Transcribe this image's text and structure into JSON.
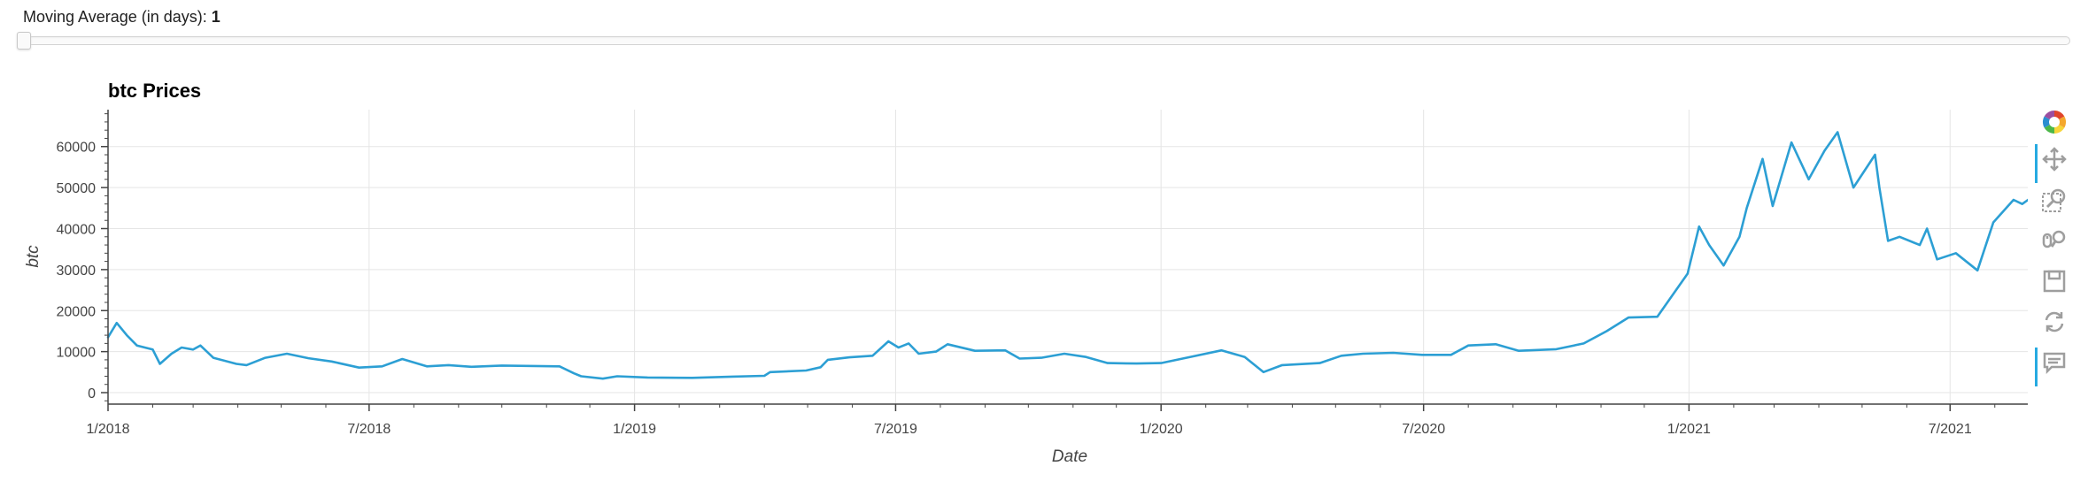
{
  "slider": {
    "label": "Moving Average (in days): ",
    "value": "1",
    "fraction": 0
  },
  "toolbar": {
    "tools": [
      "bokeh-logo-icon",
      "pan-icon",
      "box-zoom-icon",
      "wheel-zoom-icon",
      "save-icon",
      "reset-icon",
      "hover-icon"
    ]
  },
  "colors": {
    "line": "#2c9fd4",
    "grid": "#e5e5e5",
    "axis": "#444444",
    "accent": "#26aae1"
  },
  "chart_data": {
    "type": "line",
    "title": "btc Prices",
    "xlabel": "Date",
    "ylabel": "btc",
    "grid": true,
    "x_range": [
      "2018-01-01",
      "2021-08-30"
    ],
    "ylim": [
      -2800,
      69000
    ],
    "x_ticks": [
      {
        "date": "2018-01-01",
        "label": "1/2018"
      },
      {
        "date": "2018-07-01",
        "label": "7/2018"
      },
      {
        "date": "2019-01-01",
        "label": "1/2019"
      },
      {
        "date": "2019-07-01",
        "label": "7/2019"
      },
      {
        "date": "2020-01-01",
        "label": "1/2020"
      },
      {
        "date": "2020-07-01",
        "label": "7/2020"
      },
      {
        "date": "2021-01-01",
        "label": "1/2021"
      },
      {
        "date": "2021-07-01",
        "label": "7/2021"
      }
    ],
    "y_ticks": [
      0,
      10000,
      20000,
      30000,
      40000,
      50000,
      60000
    ],
    "series": [
      {
        "color": "#2c9fd4",
        "points": [
          [
            "2018-01-01",
            13500
          ],
          [
            "2018-01-07",
            17000
          ],
          [
            "2018-01-14",
            14000
          ],
          [
            "2018-01-21",
            11500
          ],
          [
            "2018-02-01",
            10500
          ],
          [
            "2018-02-06",
            7000
          ],
          [
            "2018-02-14",
            9500
          ],
          [
            "2018-02-21",
            11000
          ],
          [
            "2018-03-01",
            10500
          ],
          [
            "2018-03-06",
            11500
          ],
          [
            "2018-03-15",
            8500
          ],
          [
            "2018-03-31",
            7000
          ],
          [
            "2018-04-07",
            6700
          ],
          [
            "2018-04-20",
            8500
          ],
          [
            "2018-05-05",
            9500
          ],
          [
            "2018-05-20",
            8400
          ],
          [
            "2018-06-05",
            7600
          ],
          [
            "2018-06-24",
            6100
          ],
          [
            "2018-07-10",
            6400
          ],
          [
            "2018-07-24",
            8200
          ],
          [
            "2018-08-10",
            6400
          ],
          [
            "2018-08-25",
            6700
          ],
          [
            "2018-09-10",
            6300
          ],
          [
            "2018-10-01",
            6600
          ],
          [
            "2018-11-10",
            6400
          ],
          [
            "2018-11-20",
            4700
          ],
          [
            "2018-11-25",
            4000
          ],
          [
            "2018-12-10",
            3400
          ],
          [
            "2018-12-20",
            4000
          ],
          [
            "2019-01-10",
            3700
          ],
          [
            "2019-02-10",
            3600
          ],
          [
            "2019-03-10",
            3900
          ],
          [
            "2019-04-01",
            4100
          ],
          [
            "2019-04-05",
            5000
          ],
          [
            "2019-04-30",
            5400
          ],
          [
            "2019-05-10",
            6200
          ],
          [
            "2019-05-15",
            8000
          ],
          [
            "2019-05-30",
            8600
          ],
          [
            "2019-06-15",
            9000
          ],
          [
            "2019-06-26",
            12500
          ],
          [
            "2019-07-03",
            11000
          ],
          [
            "2019-07-10",
            12000
          ],
          [
            "2019-07-17",
            9500
          ],
          [
            "2019-07-29",
            10000
          ],
          [
            "2019-08-06",
            11800
          ],
          [
            "2019-08-25",
            10200
          ],
          [
            "2019-09-15",
            10300
          ],
          [
            "2019-09-25",
            8300
          ],
          [
            "2019-10-10",
            8500
          ],
          [
            "2019-10-26",
            9500
          ],
          [
            "2019-11-10",
            8700
          ],
          [
            "2019-11-25",
            7200
          ],
          [
            "2019-12-15",
            7100
          ],
          [
            "2020-01-01",
            7200
          ],
          [
            "2020-01-20",
            8600
          ],
          [
            "2020-02-12",
            10300
          ],
          [
            "2020-02-28",
            8700
          ],
          [
            "2020-03-12",
            5000
          ],
          [
            "2020-03-25",
            6700
          ],
          [
            "2020-04-20",
            7200
          ],
          [
            "2020-05-05",
            9000
          ],
          [
            "2020-05-20",
            9500
          ],
          [
            "2020-06-10",
            9700
          ],
          [
            "2020-06-30",
            9200
          ],
          [
            "2020-07-20",
            9200
          ],
          [
            "2020-08-01",
            11500
          ],
          [
            "2020-08-20",
            11800
          ],
          [
            "2020-09-05",
            10200
          ],
          [
            "2020-10-01",
            10600
          ],
          [
            "2020-10-20",
            12000
          ],
          [
            "2020-11-05",
            15000
          ],
          [
            "2020-11-20",
            18300
          ],
          [
            "2020-12-10",
            18500
          ],
          [
            "2020-12-20",
            23500
          ],
          [
            "2020-12-31",
            29000
          ],
          [
            "2021-01-08",
            40500
          ],
          [
            "2021-01-15",
            36000
          ],
          [
            "2021-01-25",
            31000
          ],
          [
            "2021-02-05",
            38000
          ],
          [
            "2021-02-10",
            45000
          ],
          [
            "2021-02-21",
            57000
          ],
          [
            "2021-02-28",
            45500
          ],
          [
            "2021-03-13",
            61000
          ],
          [
            "2021-03-25",
            52000
          ],
          [
            "2021-04-05",
            59000
          ],
          [
            "2021-04-14",
            63500
          ],
          [
            "2021-04-25",
            50000
          ],
          [
            "2021-05-10",
            58000
          ],
          [
            "2021-05-13",
            50000
          ],
          [
            "2021-05-19",
            37000
          ],
          [
            "2021-05-27",
            38000
          ],
          [
            "2021-06-10",
            36000
          ],
          [
            "2021-06-15",
            40000
          ],
          [
            "2021-06-22",
            32500
          ],
          [
            "2021-07-05",
            34000
          ],
          [
            "2021-07-20",
            29800
          ],
          [
            "2021-07-31",
            41500
          ],
          [
            "2021-08-14",
            47000
          ],
          [
            "2021-08-20",
            46000
          ],
          [
            "2021-08-30",
            48500
          ]
        ]
      }
    ]
  }
}
